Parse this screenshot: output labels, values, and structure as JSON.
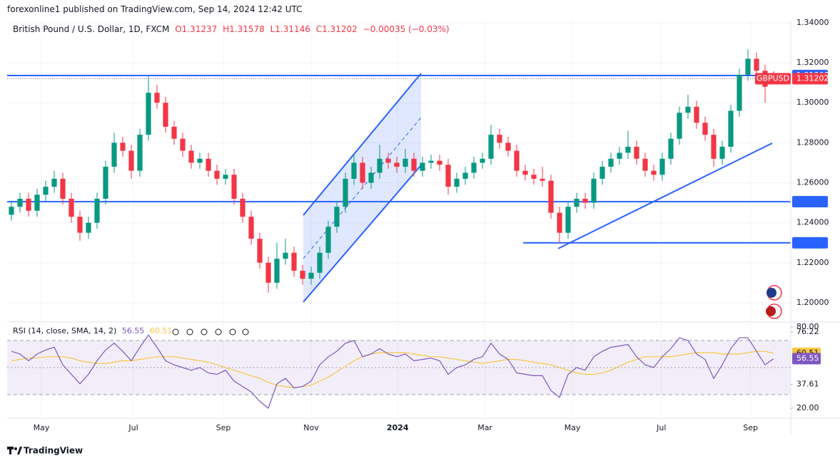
{
  "published": "forexonline1 published on TradingView.com, Sep 14, 2024 12:42 UTC",
  "brand": "TradingView",
  "chart_data": {
    "type": "candlestick",
    "legend": {
      "symbol": "British Pound / U.S. Dollar, 1D, FXCM",
      "open": "O1.31237",
      "high": "H1.31578",
      "low": "L1.31146",
      "close": "C1.31202",
      "change": "−0.00035 (−0.03%)"
    },
    "up_color": "#089981",
    "down_color": "#f23645",
    "candles": [
      [
        1.244,
        1.251,
        1.241,
        1.248
      ],
      [
        1.248,
        1.255,
        1.245,
        1.252
      ],
      [
        1.252,
        1.255,
        1.243,
        1.246
      ],
      [
        1.246,
        1.257,
        1.243,
        1.254
      ],
      [
        1.254,
        1.261,
        1.251,
        1.258
      ],
      [
        1.258,
        1.266,
        1.255,
        1.262
      ],
      [
        1.262,
        1.265,
        1.249,
        1.252
      ],
      [
        1.252,
        1.255,
        1.24,
        1.243
      ],
      [
        1.243,
        1.246,
        1.231,
        1.235
      ],
      [
        1.235,
        1.243,
        1.232,
        1.24
      ],
      [
        1.24,
        1.255,
        1.237,
        1.252
      ],
      [
        1.252,
        1.271,
        1.249,
        1.268
      ],
      [
        1.268,
        1.285,
        1.265,
        1.28
      ],
      [
        1.28,
        1.283,
        1.273,
        1.276
      ],
      [
        1.276,
        1.279,
        1.262,
        1.266
      ],
      [
        1.266,
        1.287,
        1.263,
        1.284
      ],
      [
        1.284,
        1.314,
        1.281,
        1.305
      ],
      [
        1.305,
        1.309,
        1.297,
        1.3
      ],
      [
        1.3,
        1.303,
        1.285,
        1.288
      ],
      [
        1.288,
        1.291,
        1.279,
        1.282
      ],
      [
        1.282,
        1.285,
        1.273,
        1.276
      ],
      [
        1.276,
        1.279,
        1.267,
        1.27
      ],
      [
        1.27,
        1.275,
        1.267,
        1.272
      ],
      [
        1.272,
        1.275,
        1.263,
        1.266
      ],
      [
        1.266,
        1.269,
        1.259,
        1.262
      ],
      [
        1.262,
        1.267,
        1.259,
        1.264
      ],
      [
        1.264,
        1.267,
        1.249,
        1.252
      ],
      [
        1.252,
        1.255,
        1.24,
        1.243
      ],
      [
        1.243,
        1.246,
        1.229,
        1.232
      ],
      [
        1.232,
        1.235,
        1.217,
        1.22
      ],
      [
        1.22,
        1.223,
        1.205,
        1.21
      ],
      [
        1.21,
        1.23,
        1.207,
        1.222
      ],
      [
        1.222,
        1.232,
        1.219,
        1.225
      ],
      [
        1.225,
        1.228,
        1.213,
        1.216
      ],
      [
        1.216,
        1.219,
        1.209,
        1.212
      ],
      [
        1.212,
        1.218,
        1.209,
        1.215
      ],
      [
        1.215,
        1.228,
        1.212,
        1.225
      ],
      [
        1.225,
        1.241,
        1.222,
        1.238
      ],
      [
        1.238,
        1.251,
        1.235,
        1.248
      ],
      [
        1.248,
        1.265,
        1.245,
        1.262
      ],
      [
        1.262,
        1.274,
        1.259,
        1.27
      ],
      [
        1.27,
        1.273,
        1.257,
        1.26
      ],
      [
        1.26,
        1.268,
        1.257,
        1.265
      ],
      [
        1.265,
        1.279,
        1.262,
        1.272
      ],
      [
        1.272,
        1.275,
        1.267,
        1.27
      ],
      [
        1.27,
        1.273,
        1.265,
        1.268
      ],
      [
        1.268,
        1.277,
        1.265,
        1.272
      ],
      [
        1.272,
        1.275,
        1.263,
        1.266
      ],
      [
        1.266,
        1.273,
        1.263,
        1.27
      ],
      [
        1.27,
        1.274,
        1.267,
        1.271
      ],
      [
        1.271,
        1.274,
        1.266,
        1.269
      ],
      [
        1.269,
        1.272,
        1.254,
        1.258
      ],
      [
        1.258,
        1.265,
        1.255,
        1.262
      ],
      [
        1.262,
        1.268,
        1.259,
        1.265
      ],
      [
        1.265,
        1.273,
        1.262,
        1.27
      ],
      [
        1.27,
        1.275,
        1.267,
        1.272
      ],
      [
        1.272,
        1.289,
        1.269,
        1.284
      ],
      [
        1.284,
        1.287,
        1.277,
        1.28
      ],
      [
        1.28,
        1.283,
        1.273,
        1.276
      ],
      [
        1.276,
        1.279,
        1.263,
        1.266
      ],
      [
        1.266,
        1.269,
        1.261,
        1.264
      ],
      [
        1.264,
        1.267,
        1.259,
        1.262
      ],
      [
        1.262,
        1.268,
        1.258,
        1.261
      ],
      [
        1.261,
        1.264,
        1.242,
        1.245
      ],
      [
        1.245,
        1.248,
        1.23,
        1.235
      ],
      [
        1.235,
        1.251,
        1.232,
        1.248
      ],
      [
        1.248,
        1.255,
        1.245,
        1.252
      ],
      [
        1.252,
        1.255,
        1.247,
        1.25
      ],
      [
        1.25,
        1.265,
        1.247,
        1.262
      ],
      [
        1.262,
        1.271,
        1.259,
        1.268
      ],
      [
        1.268,
        1.275,
        1.265,
        1.272
      ],
      [
        1.272,
        1.278,
        1.269,
        1.275
      ],
      [
        1.275,
        1.286,
        1.272,
        1.278
      ],
      [
        1.278,
        1.281,
        1.269,
        1.272
      ],
      [
        1.272,
        1.275,
        1.263,
        1.266
      ],
      [
        1.266,
        1.269,
        1.261,
        1.264
      ],
      [
        1.264,
        1.275,
        1.261,
        1.272
      ],
      [
        1.272,
        1.285,
        1.269,
        1.282
      ],
      [
        1.282,
        1.298,
        1.279,
        1.295
      ],
      [
        1.295,
        1.304,
        1.292,
        1.298
      ],
      [
        1.298,
        1.301,
        1.287,
        1.29
      ],
      [
        1.29,
        1.293,
        1.281,
        1.284
      ],
      [
        1.284,
        1.287,
        1.268,
        1.272
      ],
      [
        1.272,
        1.281,
        1.269,
        1.278
      ],
      [
        1.278,
        1.299,
        1.275,
        1.296
      ],
      [
        1.296,
        1.317,
        1.293,
        1.314
      ],
      [
        1.314,
        1.3266,
        1.311,
        1.322
      ],
      [
        1.322,
        1.325,
        1.313,
        1.316
      ],
      [
        1.316,
        1.319,
        1.3,
        1.308
      ],
      [
        1.31237,
        1.31578,
        1.31146,
        1.31202
      ]
    ],
    "xlim": [
      -0.5,
      91
    ],
    "xticks": [
      {
        "value": 3.5,
        "label": "May"
      },
      {
        "value": 14.25,
        "label": "Jul"
      },
      {
        "value": 24.75,
        "label": "Sep"
      },
      {
        "value": 35,
        "label": "Nov"
      },
      {
        "value": 45.1,
        "label": "2024"
      },
      {
        "value": 55.3,
        "label": "Mar"
      },
      {
        "value": 65.5,
        "label": "May"
      },
      {
        "value": 75.9,
        "label": "Jul"
      },
      {
        "value": 86.3,
        "label": "Sep"
      }
    ],
    "ylim": [
      1.1911,
      1.3414
    ],
    "yticks": [
      {
        "value": 1.34,
        "label": "1.34000"
      },
      {
        "value": 1.32,
        "label": "1.32000"
      },
      {
        "value": 1.3,
        "label": "1.30000"
      },
      {
        "value": 1.28,
        "label": "1.28000"
      },
      {
        "value": 1.26,
        "label": "1.26000"
      },
      {
        "value": 1.24,
        "label": "1.24000"
      },
      {
        "value": 1.22,
        "label": "1.22000"
      },
      {
        "value": 1.2,
        "label": "1.20000"
      }
    ],
    "grid": true,
    "levels": [
      {
        "value": 1.3136,
        "label": "1.31360",
        "color": "#2962ff"
      },
      {
        "value": 1.25055,
        "color": "#2962ff"
      },
      {
        "value": 1.22996,
        "color": "#2962ff"
      }
    ],
    "last_price": {
      "value": 1.31202,
      "symbol": "GBPUSD",
      "color": "#f23645"
    },
    "rsi": {
      "title": "RSI (14, close, SMA, 14, 2)",
      "color": "#7e57c2",
      "sma_color": "#f7c744",
      "ylim": [
        13.7,
        82.1
      ],
      "yticks": [
        {
          "value": 80,
          "label": "80.00"
        },
        76.22,
        37.61,
        {
          "value": 20,
          "label": "20.00"
        }
      ],
      "bands": [
        30,
        50,
        70
      ],
      "values": [
        62,
        60,
        55,
        60,
        63,
        65,
        52,
        45,
        38,
        45,
        55,
        63,
        68,
        62,
        55,
        65,
        74,
        65,
        55,
        52,
        50,
        48,
        50,
        46,
        45,
        48,
        40,
        36,
        32,
        25,
        20,
        38,
        42,
        35,
        36,
        40,
        52,
        58,
        62,
        68,
        70,
        58,
        60,
        64,
        60,
        58,
        60,
        55,
        56,
        57,
        55,
        45,
        50,
        52,
        56,
        58,
        68,
        60,
        56,
        46,
        45,
        44,
        44,
        33,
        28,
        45,
        50,
        48,
        58,
        62,
        65,
        66,
        67,
        58,
        52,
        50,
        58,
        64,
        72,
        70,
        60,
        56,
        42,
        52,
        64,
        72,
        72,
        62,
        52,
        56.55
      ],
      "sma": [
        55,
        56,
        57,
        57,
        58,
        58,
        58,
        57,
        55,
        54,
        53,
        53,
        54,
        55,
        55,
        56,
        57,
        58,
        58,
        58,
        57,
        56,
        55,
        54,
        52,
        50,
        48,
        46,
        44,
        42,
        39,
        37,
        36,
        35,
        36,
        37,
        40,
        43,
        47,
        51,
        55,
        58,
        60,
        61,
        61,
        61,
        61,
        60,
        59,
        58,
        58,
        57,
        56,
        55,
        54,
        53,
        54,
        55,
        56,
        56,
        55,
        54,
        53,
        52,
        50,
        48,
        46,
        45,
        45,
        46,
        48,
        51,
        54,
        56,
        58,
        58,
        58,
        58,
        59,
        60,
        61,
        61,
        61,
        60,
        60,
        60,
        61,
        62,
        62,
        60.51
      ]
    }
  }
}
